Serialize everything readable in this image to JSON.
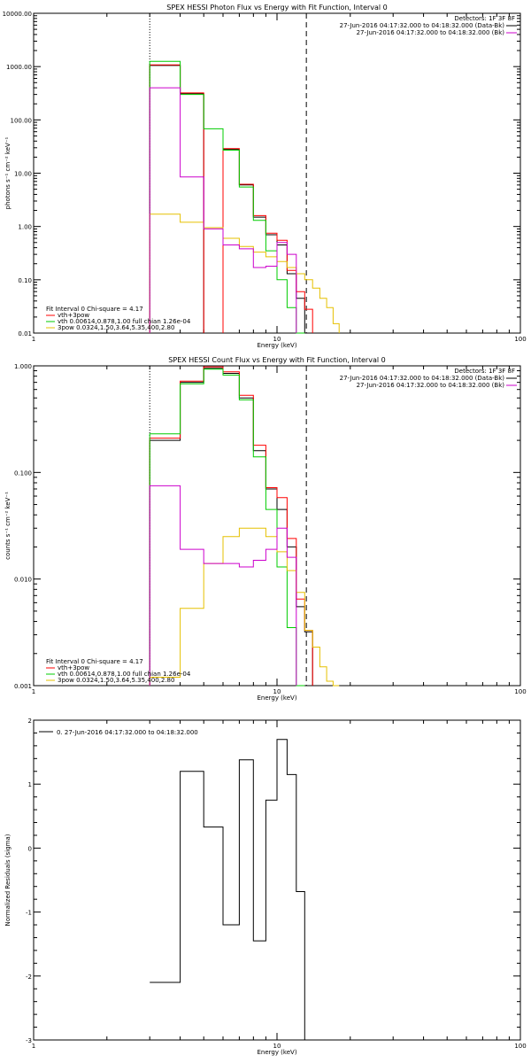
{
  "chart_data": [
    {
      "type": "line",
      "title": "SPEX HESSI Photon Flux vs Energy with Fit Function, Interval 0",
      "xlabel": "Energy (keV)",
      "ylabel": "photons s⁻¹ cm⁻² keV⁻¹",
      "xscale": "log",
      "yscale": "log",
      "xlim": [
        1,
        100
      ],
      "ylim": [
        0.01,
        10000
      ],
      "x_tick_labels": [
        "1",
        "10",
        "100"
      ],
      "y_tick_labels": [
        "0.01",
        "0.10",
        "1.00",
        "10.00",
        "100.00",
        "1000.00",
        "10000.00"
      ],
      "legend_top": [
        "Detectors: 1F 3F 8F",
        "27-Jun-2016 04:17:32.000 to 04:18:32.000 (Data-Bk)",
        "27-Jun-2016 04:17:32.000 to 04:18:32.000 (Bk)"
      ],
      "legend_bottom": [
        "Fit Interval 0   Chi-square = 4.17",
        "vth+3pow",
        "vth 0.00614,0.878,1.00  full chian 1.26e-04",
        "3pow 0.0324,1.50,3.64,5.35,400,2.80"
      ],
      "vlines": [
        {
          "x": 3,
          "style": "dotted"
        },
        {
          "x": 13.2,
          "style": "dashed"
        }
      ],
      "bin_edges": [
        3,
        4,
        5,
        6,
        7,
        8,
        9,
        10,
        11,
        12,
        13,
        14,
        15,
        16,
        17,
        18
      ],
      "series": [
        {
          "name": "Data-Bk",
          "color": "#000000",
          "values": [
            1050,
            310,
            null,
            28,
            6,
            1.5,
            0.7,
            0.45,
            0.13,
            0.045,
            null,
            null,
            null,
            null,
            null
          ]
        },
        {
          "name": "vth+3pow",
          "color": "#ff0000",
          "values": [
            1080,
            320,
            null,
            29,
            6.2,
            1.6,
            0.75,
            0.55,
            0.15,
            0.06,
            0.028,
            null,
            null,
            null,
            null
          ]
        },
        {
          "name": "vth",
          "color": "#00cc00",
          "values": [
            1250,
            300,
            68,
            27,
            5.5,
            1.3,
            0.35,
            0.1,
            0.03,
            0.009,
            null,
            null,
            null,
            null,
            null
          ]
        },
        {
          "name": "3pow",
          "color": "#e6c000",
          "values": [
            1.7,
            1.2,
            0.95,
            0.6,
            0.42,
            0.33,
            0.27,
            0.22,
            0.17,
            0.13,
            0.1,
            0.07,
            0.045,
            0.03,
            0.015
          ]
        },
        {
          "name": "Bk",
          "color": "#cc00cc",
          "values": [
            400,
            8.5,
            0.9,
            0.45,
            0.38,
            0.17,
            0.18,
            0.5,
            0.3,
            null,
            null,
            null,
            null,
            null,
            null
          ]
        }
      ]
    },
    {
      "type": "line",
      "title": "SPEX HESSI Count Flux vs Energy with Fit Function, Interval 0",
      "xlabel": "Energy (keV)",
      "ylabel": "counts s⁻¹ cm⁻² keV⁻¹",
      "xscale": "log",
      "yscale": "log",
      "xlim": [
        1,
        100
      ],
      "ylim": [
        0.001,
        1
      ],
      "x_tick_labels": [
        "1",
        "10",
        "100"
      ],
      "y_tick_labels": [
        "0.001",
        "0.010",
        "0.100",
        "1.000"
      ],
      "legend_top": [
        "Detectors: 1F 3F 8F",
        "27-Jun-2016 04:17:32.000 to 04:18:32.000 (Data-Bk)",
        "27-Jun-2016 04:17:32.000 to 04:18:32.000 (Bk)"
      ],
      "legend_bottom": [
        "Fit Interval 0   Chi-square = 4.17",
        "vth+3pow",
        "vth 0.00614,0.878,1.00  full chian 1.26e-04",
        "3pow 0.0324,1.50,3.64,5.35,400,2.80"
      ],
      "vlines": [
        {
          "x": 3,
          "style": "dotted"
        },
        {
          "x": 13.2,
          "style": "dashed"
        }
      ],
      "bin_edges": [
        3,
        4,
        5,
        6,
        7,
        8,
        9,
        10,
        11,
        12,
        13,
        14,
        15,
        16,
        17,
        18
      ],
      "series": [
        {
          "name": "Data-Bk",
          "color": "#000000",
          "values": [
            0.2,
            0.7,
            0.95,
            0.85,
            0.5,
            0.16,
            0.07,
            0.045,
            0.02,
            0.0055,
            0.0032,
            null,
            null,
            null,
            null
          ]
        },
        {
          "name": "vth+3pow",
          "color": "#ff0000",
          "values": [
            0.21,
            0.72,
            0.98,
            0.88,
            0.53,
            0.18,
            0.072,
            0.058,
            0.024,
            0.0065,
            0.0033,
            null,
            null,
            null,
            null
          ]
        },
        {
          "name": "vth",
          "color": "#00cc00",
          "values": [
            0.23,
            0.68,
            0.93,
            0.82,
            0.48,
            0.14,
            0.045,
            0.013,
            0.0035,
            0.0008,
            null,
            null,
            null,
            null,
            null
          ]
        },
        {
          "name": "3pow",
          "color": "#e6c000",
          "values": [
            0.0012,
            0.0053,
            0.014,
            0.025,
            0.03,
            0.03,
            0.025,
            0.018,
            0.012,
            0.0075,
            0.0033,
            0.0023,
            0.0015,
            0.0011,
            0.001
          ]
        },
        {
          "name": "Bk",
          "color": "#cc00cc",
          "values": [
            0.075,
            0.019,
            0.014,
            0.014,
            0.013,
            0.015,
            0.019,
            0.03,
            0.016,
            null,
            null,
            null,
            null,
            null,
            null
          ]
        }
      ]
    },
    {
      "type": "line",
      "title": "",
      "xlabel": "Energy (keV)",
      "ylabel": "Normalized Residuals (sigma)",
      "xscale": "log",
      "yscale": "linear",
      "xlim": [
        1,
        100
      ],
      "ylim": [
        -3,
        2
      ],
      "x_tick_labels": [
        "1",
        "10",
        "100"
      ],
      "y_tick_labels": [
        "-3",
        "-2",
        "-1",
        "0",
        "1",
        "2"
      ],
      "legend_top": [
        "0. 27-Jun-2016 04:17:32.000 to 04:18:32.000"
      ],
      "bin_edges": [
        3,
        4,
        5,
        6,
        7,
        8,
        9,
        10,
        11,
        12,
        13
      ],
      "series": [
        {
          "name": "0. 27-Jun-2016 04:17:32.000 to 04:18:32.000",
          "color": "#000000",
          "values": [
            -2.1,
            1.2,
            0.33,
            -1.2,
            1.38,
            -1.45,
            0.75,
            1.7,
            1.15,
            -0.68
          ]
        }
      ]
    }
  ]
}
